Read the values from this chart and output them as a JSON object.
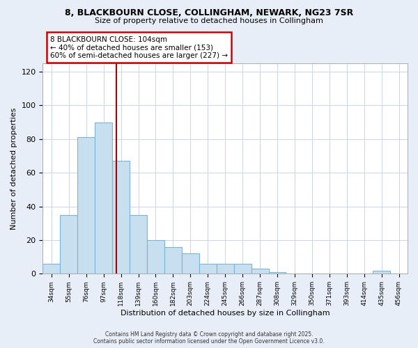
{
  "title_line1": "8, BLACKBOURN CLOSE, COLLINGHAM, NEWARK, NG23 7SR",
  "title_line2": "Size of property relative to detached houses in Collingham",
  "xlabel": "Distribution of detached houses by size in Collingham",
  "ylabel": "Number of detached properties",
  "categories": [
    "34sqm",
    "55sqm",
    "76sqm",
    "97sqm",
    "118sqm",
    "139sqm",
    "160sqm",
    "182sqm",
    "203sqm",
    "224sqm",
    "245sqm",
    "266sqm",
    "287sqm",
    "308sqm",
    "329sqm",
    "350sqm",
    "371sqm",
    "393sqm",
    "414sqm",
    "435sqm",
    "456sqm"
  ],
  "values": [
    6,
    35,
    81,
    90,
    67,
    35,
    20,
    16,
    12,
    6,
    6,
    6,
    3,
    1,
    0,
    0,
    0,
    0,
    0,
    2,
    0
  ],
  "bar_color": "#c8dff0",
  "bar_edge_color": "#7ab4d8",
  "vline_color": "#aa0000",
  "vline_x": 3.72,
  "annotation_title": "8 BLACKBOURN CLOSE: 104sqm",
  "annotation_line2": "← 40% of detached houses are smaller (153)",
  "annotation_line3": "60% of semi-detached houses are larger (227) →",
  "ylim": [
    0,
    125
  ],
  "yticks": [
    0,
    20,
    40,
    60,
    80,
    100,
    120
  ],
  "footer_line1": "Contains HM Land Registry data © Crown copyright and database right 2025.",
  "footer_line2": "Contains public sector information licensed under the Open Government Licence v3.0.",
  "bg_color": "#e8eef8",
  "plot_bg_color": "#ffffff",
  "grid_color": "#c8d4e8"
}
